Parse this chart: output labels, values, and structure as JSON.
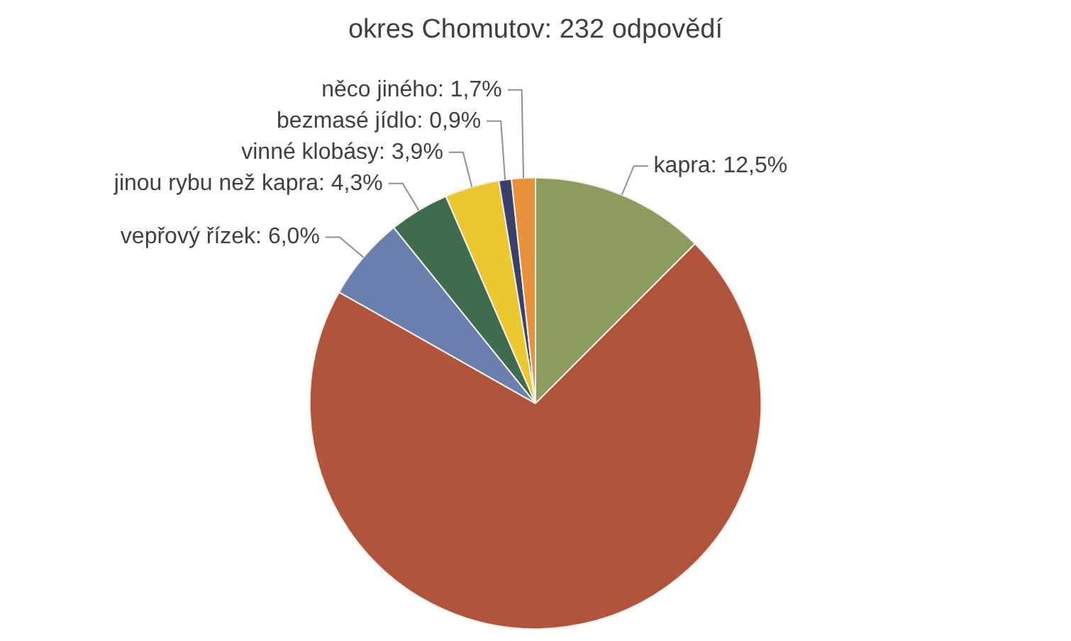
{
  "chart_data": {
    "type": "pie",
    "title": "okres Chomutov: 232 odpovědí",
    "categories": [
      "kapra",
      null,
      "vepřový řízek",
      "jinou rybu než kapra",
      "vinné klobásy",
      "bezmasé jídlo",
      "něco jiného"
    ],
    "values": [
      12.5,
      70.7,
      6.0,
      4.3,
      3.9,
      0.9,
      1.7
    ],
    "value_labels": [
      "12,5%",
      null,
      "6,0%",
      "4,3%",
      "3,9%",
      "0,9%",
      "1,7%"
    ],
    "colors": [
      "#8c9b5e",
      "#b0553c",
      "#6a7fae",
      "#3f6b4e",
      "#ecc830",
      "#3a3f6b",
      "#e8903a"
    ],
    "legend": false
  }
}
